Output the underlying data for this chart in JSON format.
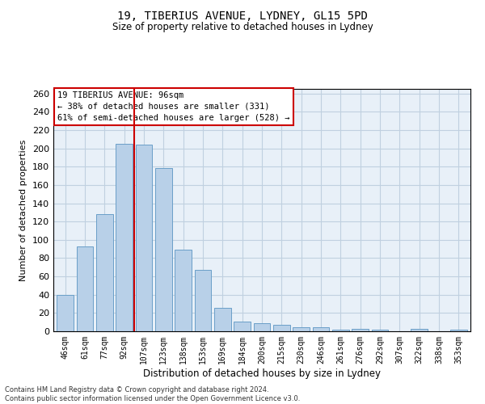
{
  "title_line1": "19, TIBERIUS AVENUE, LYDNEY, GL15 5PD",
  "title_line2": "Size of property relative to detached houses in Lydney",
  "xlabel": "Distribution of detached houses by size in Lydney",
  "ylabel": "Number of detached properties",
  "categories": [
    "46sqm",
    "61sqm",
    "77sqm",
    "92sqm",
    "107sqm",
    "123sqm",
    "138sqm",
    "153sqm",
    "169sqm",
    "184sqm",
    "200sqm",
    "215sqm",
    "230sqm",
    "246sqm",
    "261sqm",
    "276sqm",
    "292sqm",
    "307sqm",
    "322sqm",
    "338sqm",
    "353sqm"
  ],
  "values": [
    40,
    93,
    128,
    205,
    204,
    178,
    89,
    67,
    26,
    11,
    9,
    7,
    4,
    4,
    2,
    3,
    2,
    0,
    3,
    0,
    2
  ],
  "bar_color": "#b8d0e8",
  "bar_edge_color": "#6a9fc8",
  "vline_x": 3.5,
  "vline_color": "#cc0000",
  "annotation_text": "19 TIBERIUS AVENUE: 96sqm\n← 38% of detached houses are smaller (331)\n61% of semi-detached houses are larger (528) →",
  "annotation_box_color": "#ffffff",
  "annotation_box_edge": "#cc0000",
  "grid_color": "#c0d0e0",
  "background_color": "#e8f0f8",
  "footer_line1": "Contains HM Land Registry data © Crown copyright and database right 2024.",
  "footer_line2": "Contains public sector information licensed under the Open Government Licence v3.0.",
  "ylim": [
    0,
    265
  ],
  "yticks": [
    0,
    20,
    40,
    60,
    80,
    100,
    120,
    140,
    160,
    180,
    200,
    220,
    240,
    260
  ]
}
